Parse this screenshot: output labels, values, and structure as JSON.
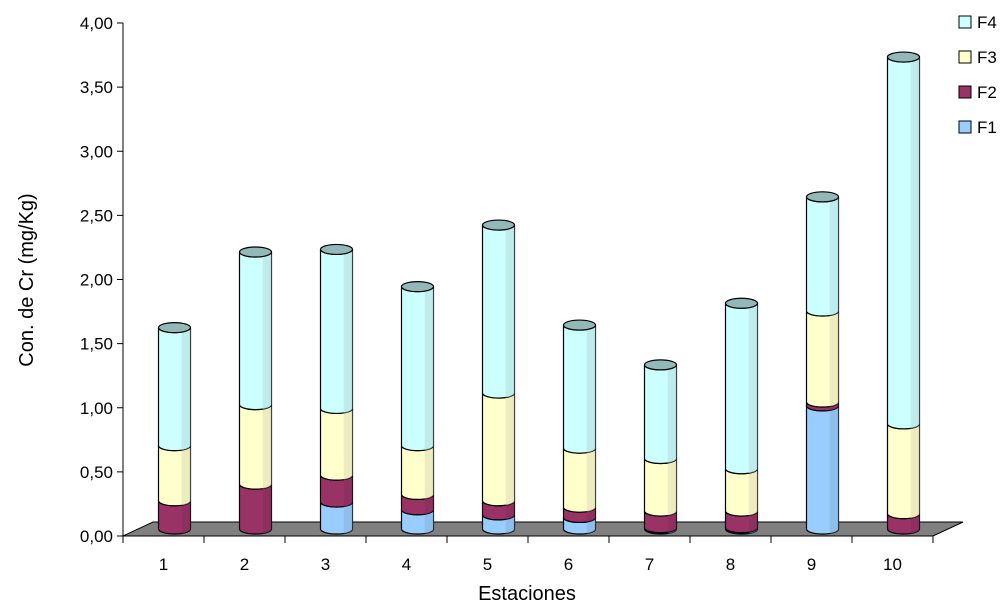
{
  "chart_data": {
    "type": "bar",
    "stacked": true,
    "three_d": true,
    "title": "",
    "xlabel": "Estaciones",
    "ylabel": "Con. de Cr (mg/Kg)",
    "ylim": [
      0,
      4
    ],
    "yticks": [
      "0,00",
      "0,50",
      "1,00",
      "1,50",
      "2,00",
      "2,50",
      "3,00",
      "3,50",
      "4,00"
    ],
    "grid": false,
    "legend_position": "top-right",
    "categories": [
      "1",
      "2",
      "3",
      "4",
      "5",
      "6",
      "7",
      "8",
      "9",
      "10"
    ],
    "series": [
      {
        "name": "F1",
        "color": "#99ccff",
        "values": [
          0.0,
          0.0,
          0.21,
          0.15,
          0.11,
          0.09,
          0.01,
          0.01,
          0.96,
          0.0
        ]
      },
      {
        "name": "F2",
        "color": "#993366",
        "values": [
          0.22,
          0.35,
          0.21,
          0.12,
          0.11,
          0.08,
          0.13,
          0.13,
          0.03,
          0.12
        ]
      },
      {
        "name": "F3",
        "color": "#ffffcc",
        "values": [
          0.43,
          0.62,
          0.52,
          0.38,
          0.84,
          0.46,
          0.41,
          0.33,
          0.71,
          0.7
        ]
      },
      {
        "name": "F4",
        "color": "#ccffff",
        "values": [
          0.92,
          1.19,
          1.24,
          1.24,
          1.31,
          0.96,
          0.73,
          1.29,
          0.89,
          2.86
        ]
      }
    ],
    "floor_color": "#808080"
  }
}
